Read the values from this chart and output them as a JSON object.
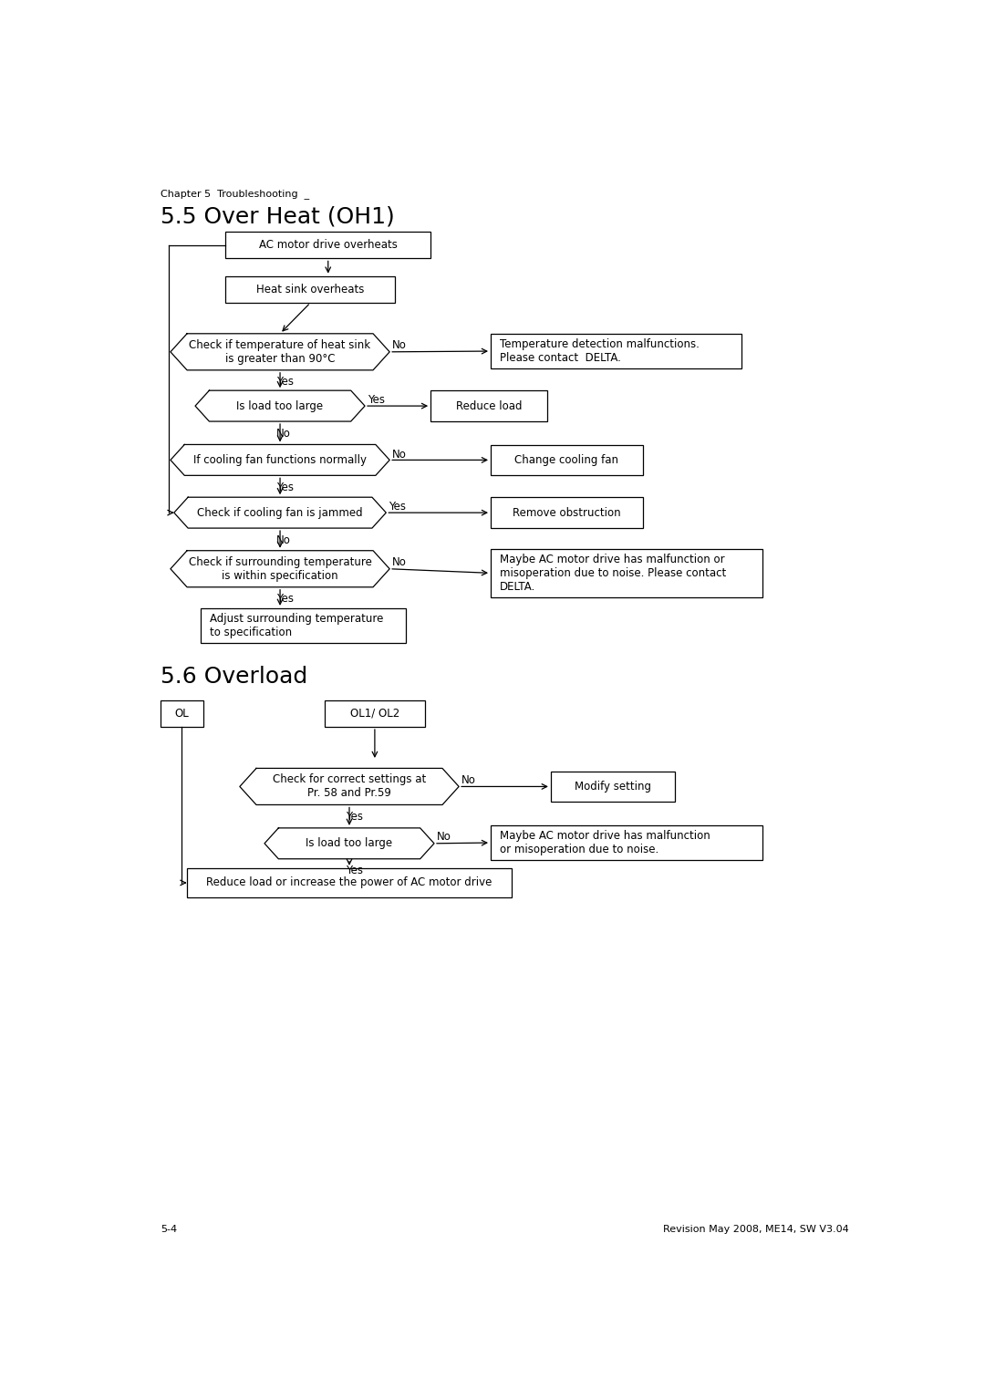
{
  "page_title": "Chapter 5  Troubleshooting  _",
  "section1_title": "5.5 Over Heat (OH1)",
  "section2_title": "5.6 Overload",
  "footer_left": "5-4",
  "footer_right": "Revision May 2008, ME14, SW V3.04",
  "bg_color": "#ffffff",
  "box_color": "#000000",
  "text_color": "#000000",
  "font_size": 8.5,
  "title_font_size": 18,
  "header_font_size": 8
}
